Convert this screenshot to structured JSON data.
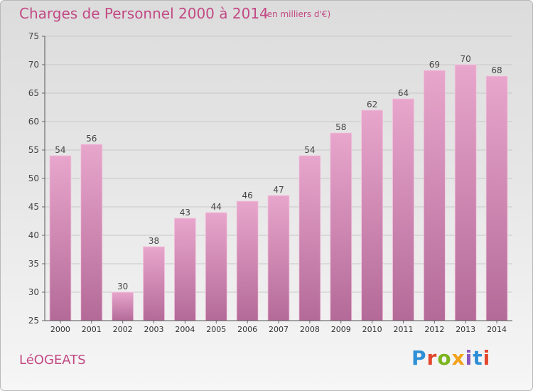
{
  "header": {
    "title": "Charges de Personnel 2000 à 2014",
    "subtitle": "(en milliers d'€)"
  },
  "footer": {
    "town": "LéOGEATS",
    "brand": "Proxiti",
    "brand_colors": [
      "#2f8fd6",
      "#e2462b",
      "#7ab51d",
      "#f2a21a",
      "#8a55c0",
      "#2f8fd6",
      "#e2462b"
    ]
  },
  "colors": {
    "accent": "#c24a84",
    "bar_top": "#e8a6cc",
    "bar_bottom": "#b46a98",
    "grid": "#c8c8c8"
  },
  "chart_data": {
    "type": "bar",
    "categories": [
      "2000",
      "2001",
      "2002",
      "2003",
      "2004",
      "2005",
      "2006",
      "2007",
      "2008",
      "2009",
      "2010",
      "2011",
      "2012",
      "2013",
      "2014"
    ],
    "values": [
      54,
      56,
      30,
      38,
      43,
      44,
      46,
      47,
      54,
      58,
      62,
      64,
      69,
      70,
      68
    ],
    "title": "Charges de Personnel 2000 à 2014",
    "subtitle": "(en milliers d'€)",
    "xlabel": "",
    "ylabel": "",
    "ylim": [
      25,
      75
    ],
    "yticks": [
      25,
      30,
      35,
      40,
      45,
      50,
      55,
      60,
      65,
      70,
      75
    ],
    "grid": true,
    "data_labels": true
  }
}
